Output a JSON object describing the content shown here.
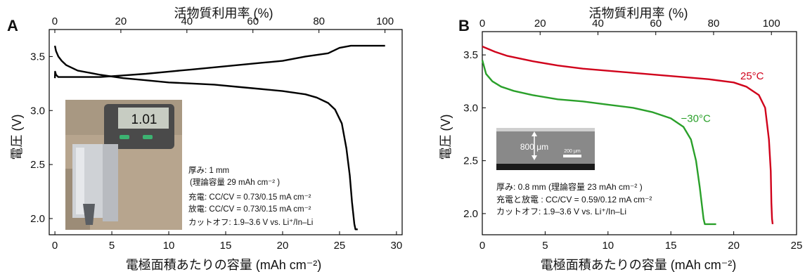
{
  "colors": {
    "black": "#000000",
    "red": "#d0021b",
    "green": "#2aa02a"
  },
  "chart_data": [
    {
      "type": "line",
      "panel_label": "A",
      "xlabel": "電極面積あたりの容量 (mAh cm⁻²)",
      "x2label": "活物質利用率 (%)",
      "ylabel": "電圧 (V)",
      "xlim": [
        -0.5,
        30.5
      ],
      "x2lim": [
        -1.7,
        105.2
      ],
      "ylim": [
        1.85,
        3.75
      ],
      "xticks": [
        0,
        5,
        10,
        15,
        20,
        25,
        30
      ],
      "x2ticks": [
        0,
        20,
        40,
        60,
        80,
        100
      ],
      "yticks": [
        2.0,
        2.5,
        3.0,
        3.5
      ],
      "ytick_labels": [
        "2.0",
        "2.5",
        "3.0",
        "3.5"
      ],
      "series": [
        {
          "role": "charge",
          "color": "#000000",
          "x": [
            0,
            0.02,
            0.1,
            0.3,
            0.6,
            1,
            2,
            4,
            6,
            8,
            10,
            12,
            14,
            16,
            18,
            20,
            22,
            24,
            25,
            26,
            27,
            28,
            29
          ],
          "y": [
            3.3,
            3.36,
            3.33,
            3.31,
            3.31,
            3.31,
            3.31,
            3.31,
            3.325,
            3.34,
            3.36,
            3.38,
            3.4,
            3.42,
            3.44,
            3.46,
            3.5,
            3.53,
            3.58,
            3.6,
            3.6,
            3.6,
            3.6
          ]
        },
        {
          "role": "discharge",
          "color": "#000000",
          "x": [
            0,
            0.1,
            0.3,
            0.6,
            1,
            2,
            4,
            6,
            8,
            10,
            12,
            14,
            16,
            18,
            20,
            22,
            23,
            24,
            24.6,
            25.2,
            25.6,
            25.9,
            26.1,
            26.3,
            26.4,
            26.6
          ],
          "y": [
            3.6,
            3.55,
            3.5,
            3.46,
            3.42,
            3.37,
            3.33,
            3.3,
            3.28,
            3.26,
            3.25,
            3.24,
            3.22,
            3.2,
            3.18,
            3.15,
            3.12,
            3.07,
            3.01,
            2.88,
            2.65,
            2.4,
            2.15,
            1.95,
            1.9,
            1.9
          ]
        }
      ],
      "inset": {
        "kind": "photo",
        "caliper_reading": "1.01"
      },
      "annotations": [
        "厚み: 1 mm",
        "(理論容量 29 mAh cm⁻² )",
        "充電: CC/CV = 0.73/0.15 mA cm⁻²",
        "放電: CC/CV = 0.73/0.15 mA cm⁻²",
        "カットオフ: 1.9–3.6 V vs. Li⁺/In–Li"
      ]
    },
    {
      "type": "line",
      "panel_label": "B",
      "xlabel": "電極面積あたりの容量 (mAh cm⁻²)",
      "x2label": "活物質利用率 (%)",
      "ylabel": "電圧 (V)",
      "xlim": [
        0,
        25
      ],
      "x2lim": [
        0,
        108.7
      ],
      "ylim": [
        1.8,
        3.72
      ],
      "xticks": [
        0,
        5,
        10,
        15,
        20,
        25
      ],
      "x2ticks": [
        0,
        20,
        40,
        60,
        80,
        100
      ],
      "yticks": [
        2.0,
        2.5,
        3.0,
        3.5
      ],
      "ytick_labels": [
        "2.0",
        "2.5",
        "3.0",
        "3.5"
      ],
      "series": [
        {
          "name": "25°C",
          "color": "#d0021b",
          "x": [
            0,
            1,
            2,
            4,
            6,
            8,
            10,
            12,
            14,
            16,
            18,
            20,
            21,
            22,
            22.5,
            22.8,
            22.95,
            23.0,
            23.05,
            23.1
          ],
          "y": [
            3.58,
            3.53,
            3.49,
            3.44,
            3.4,
            3.37,
            3.35,
            3.33,
            3.31,
            3.29,
            3.27,
            3.24,
            3.2,
            3.12,
            3.0,
            2.7,
            2.4,
            2.1,
            1.95,
            1.9
          ]
        },
        {
          "name": "−30°C",
          "color": "#2aa02a",
          "x": [
            0,
            0.3,
            0.8,
            1.5,
            2.5,
            4,
            6,
            8,
            10,
            12,
            13.5,
            15,
            16,
            16.6,
            17.0,
            17.3,
            17.5,
            17.6,
            17.7,
            18.6
          ],
          "y": [
            3.45,
            3.32,
            3.25,
            3.2,
            3.16,
            3.12,
            3.08,
            3.06,
            3.03,
            3.0,
            2.96,
            2.9,
            2.82,
            2.7,
            2.5,
            2.25,
            2.05,
            1.95,
            1.9,
            1.9
          ]
        }
      ],
      "inset": {
        "kind": "sem_image",
        "thickness_label": "800 μm",
        "scale_bar_label": "200 μm"
      },
      "annotations": [
        "厚み: 0.8 mm  (理論容量 23 mAh cm⁻² )",
        "充電と放電 : CC/CV = 0.59/0.12 mA cm⁻²",
        "カットオフ: 1.9–3.6 V vs. Li⁺/In–Li"
      ]
    }
  ]
}
